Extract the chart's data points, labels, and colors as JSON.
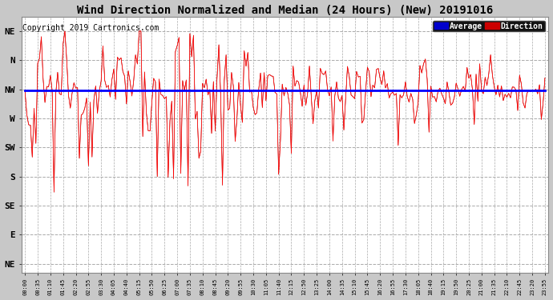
{
  "title": "Wind Direction Normalized and Median (24 Hours) (New) 20191016",
  "copyright": "Copyright 2019 Cartronics.com",
  "ytick_labels": [
    "NE",
    "N",
    "NW",
    "W",
    "SW",
    "S",
    "SE",
    "E",
    "NE"
  ],
  "ytick_values": [
    8,
    7,
    6,
    5,
    4,
    3,
    2,
    1,
    0
  ],
  "ylim": [
    -0.3,
    8.5
  ],
  "nw_level": 6.0,
  "median_value": 5.95,
  "plot_bg_color": "#ffffff",
  "figure_bg_color": "#c8c8c8",
  "grid_color": "#aaaaaa",
  "red_color": "#ff0000",
  "blue_color": "#0000ff",
  "dark_color": "#333333",
  "title_fontsize": 10,
  "copyright_fontsize": 7,
  "legend_avg_bg": "#0000cc",
  "legend_dir_bg": "#cc0000",
  "n_points": 288,
  "tick_step_minutes": 35,
  "figwidth": 6.9,
  "figheight": 3.75,
  "dpi": 100
}
